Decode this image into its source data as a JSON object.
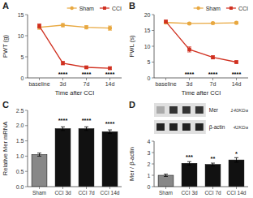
{
  "chart_data": [
    {
      "type": "line",
      "title": "A",
      "xlabel": "Time after CCI",
      "ylabel": "PWT (g)",
      "categories": [
        "baseline",
        "3d",
        "7d",
        "14d"
      ],
      "series": [
        {
          "name": "Sham",
          "color": "#E8A840",
          "marker": "circle",
          "values": [
            12.0,
            12.5,
            12.0,
            11.8
          ],
          "errors": [
            0.5,
            0.4,
            0.4,
            0.5
          ]
        },
        {
          "name": "CCI",
          "color": "#D03020",
          "marker": "square",
          "values": [
            12.3,
            3.5,
            2.5,
            2.3
          ],
          "errors": [
            0.5,
            0.4,
            0.3,
            0.3
          ]
        }
      ],
      "ylim": [
        0,
        15
      ],
      "yticks": [
        0,
        5,
        10,
        15
      ],
      "legend": "upper right",
      "grid": false,
      "annotations": [
        {
          "text": "****",
          "x": "3d",
          "y": 0.2
        },
        {
          "text": "****",
          "x": "7d",
          "y": 0.2
        },
        {
          "text": "****",
          "x": "14d",
          "y": 0.2
        }
      ]
    },
    {
      "type": "line",
      "title": "B",
      "xlabel": "Time after CCI",
      "ylabel": "PWL (s)",
      "categories": [
        "baseline",
        "3d",
        "7d",
        "14d"
      ],
      "series": [
        {
          "name": "Sham",
          "color": "#E8A840",
          "marker": "circle",
          "values": [
            17.5,
            17.2,
            17.3,
            17.4
          ],
          "errors": [
            0.4,
            0.3,
            0.3,
            0.3
          ]
        },
        {
          "name": "CCI",
          "color": "#D03020",
          "marker": "square",
          "values": [
            17.8,
            9.0,
            6.5,
            5.0
          ],
          "errors": [
            0.4,
            0.8,
            0.5,
            0.4
          ]
        }
      ],
      "ylim": [
        0,
        20
      ],
      "yticks": [
        0,
        5,
        10,
        15,
        20
      ],
      "legend": "upper right",
      "grid": false,
      "annotations": [
        {
          "text": "****",
          "x": "3d",
          "y": 0.3
        },
        {
          "text": "****",
          "x": "7d",
          "y": 0.3
        },
        {
          "text": "****",
          "x": "14d",
          "y": 0.3
        }
      ]
    },
    {
      "type": "bar",
      "title": "C",
      "ylabel": "Relative Mer mRNA",
      "categories": [
        "Sham",
        "CCI 3d",
        "CCI 7d",
        "CCI 14d"
      ],
      "values": [
        1.05,
        1.9,
        1.9,
        1.8
      ],
      "errors": [
        0.05,
        0.06,
        0.06,
        0.06
      ],
      "colors": [
        "#888888",
        "#111111",
        "#111111",
        "#111111"
      ],
      "ylim": [
        0,
        2.5
      ],
      "yticks": [
        {
          "value": 0.0,
          "label": "0.0"
        },
        0.5,
        {
          "value": 1.0,
          "label": "1.0"
        },
        1.5,
        {
          "value": 2.0,
          "label": "2.0"
        },
        2.5
      ],
      "grid": false,
      "annotations": [
        {
          "text": "****",
          "x": "CCI 3d",
          "y": 2.08
        },
        {
          "text": "****",
          "x": "CCI 7d",
          "y": 2.08
        },
        {
          "text": "****",
          "x": "CCI 14d",
          "y": 1.98
        }
      ]
    },
    {
      "type": "bar",
      "title": "D",
      "ylabel": "Mer / β-actin",
      "categories": [
        "Sham",
        "CCI 3d",
        "CCI 7d",
        "CCI 14d"
      ],
      "values": [
        1.0,
        2.05,
        1.95,
        2.35
      ],
      "errors": [
        0.1,
        0.15,
        0.12,
        0.2
      ],
      "colors": [
        "#888888",
        "#111111",
        "#111111",
        "#111111"
      ],
      "ylim": [
        0,
        4.0
      ],
      "yticks": [
        0,
        1,
        2,
        3,
        4
      ],
      "grid": false,
      "annotations": [
        {
          "text": "***",
          "x": "CCI 3d",
          "y": 2.35
        },
        {
          "text": "**",
          "x": "CCI 7d",
          "y": 2.2
        },
        {
          "text": "*",
          "x": "CCI 14d",
          "y": 2.65
        },
        {
          "text": "Mer"
        },
        {
          "text": "140KDa"
        },
        {
          "text": "β-actin"
        },
        {
          "text": "42KDa"
        }
      ]
    }
  ]
}
